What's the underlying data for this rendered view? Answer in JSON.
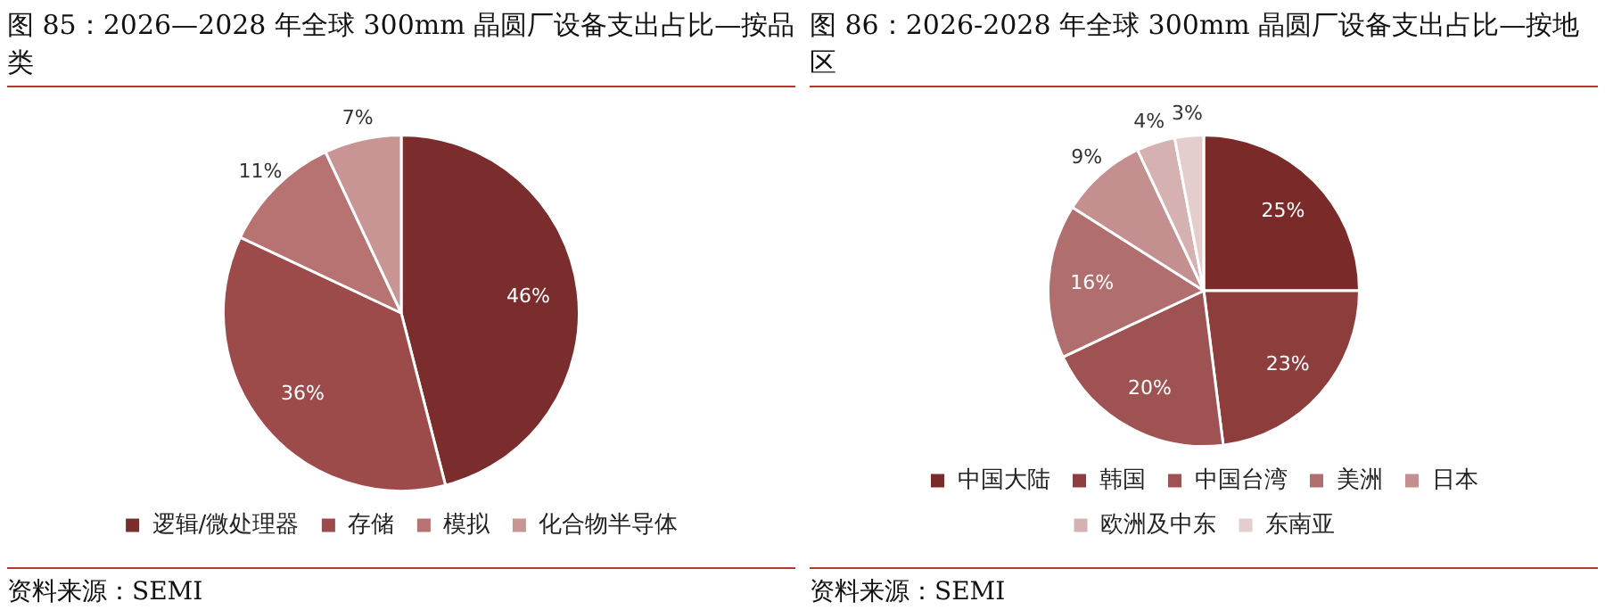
{
  "chart_data": [
    {
      "type": "pie",
      "title": "图 85：2026—2028 年全球 300mm 晶圆厂设备支出占比—按品类",
      "categories": [
        "逻辑/微处理器",
        "存储",
        "模拟",
        "化合物半导体"
      ],
      "values": [
        46,
        36,
        11,
        7
      ],
      "value_labels": [
        "46%",
        "36%",
        "11%",
        "7%"
      ],
      "colors": [
        "#7b2c2c",
        "#9c4a4a",
        "#b77272",
        "#c89494"
      ],
      "legend": "bottom",
      "annotations": [
        "资料来源：SEMI"
      ]
    },
    {
      "type": "pie",
      "title": "图 86：2026-2028 年全球 300mm 晶圆厂设备支出占比—按地区",
      "categories": [
        "中国大陆",
        "韩国",
        "中国台湾",
        "美洲",
        "日本",
        "欧洲及中东",
        "东南亚"
      ],
      "values": [
        25,
        23,
        20,
        16,
        9,
        4,
        3
      ],
      "value_labels": [
        "25%",
        "23%",
        "20%",
        "16%",
        "9%",
        "4%",
        "3%"
      ],
      "colors": [
        "#7b2a2a",
        "#8e3d3d",
        "#9e5252",
        "#b06e6e",
        "#c48f8f",
        "#d6b1b1",
        "#e4cdcd"
      ],
      "legend": "bottom",
      "annotations": [
        "资料来源：SEMI"
      ]
    }
  ]
}
